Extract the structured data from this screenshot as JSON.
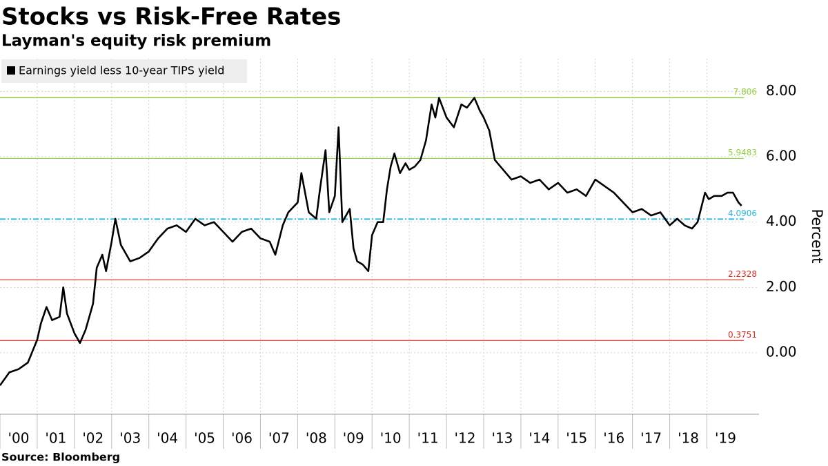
{
  "chart_data": {
    "type": "line",
    "title": "Stocks vs Risk-Free Rates",
    "subtitle": "Layman's equity risk premium",
    "source": "Source: Bloomberg",
    "y_label": "Percent",
    "xlim": [
      2000,
      2020.4
    ],
    "ylim": [
      -1.88,
      9.0
    ],
    "xticks": [
      {
        "value": 2000,
        "label": "'00"
      },
      {
        "value": 2001,
        "label": "'01"
      },
      {
        "value": 2002,
        "label": "'02"
      },
      {
        "value": 2003,
        "label": "'03"
      },
      {
        "value": 2004,
        "label": "'04"
      },
      {
        "value": 2005,
        "label": "'05"
      },
      {
        "value": 2006,
        "label": "'06"
      },
      {
        "value": 2007,
        "label": "'07"
      },
      {
        "value": 2008,
        "label": "'08"
      },
      {
        "value": 2009,
        "label": "'09"
      },
      {
        "value": 2010,
        "label": "'10"
      },
      {
        "value": 2011,
        "label": "'11"
      },
      {
        "value": 2012,
        "label": "'12"
      },
      {
        "value": 2013,
        "label": "'13"
      },
      {
        "value": 2014,
        "label": "'14"
      },
      {
        "value": 2015,
        "label": "'15"
      },
      {
        "value": 2016,
        "label": "'16"
      },
      {
        "value": 2017,
        "label": "'17"
      },
      {
        "value": 2018,
        "label": "'18"
      },
      {
        "value": 2019,
        "label": "'19"
      }
    ],
    "yticks": [
      {
        "value": 0,
        "label": "0.00"
      },
      {
        "value": 2,
        "label": "2.00"
      },
      {
        "value": 4,
        "label": "4.00"
      },
      {
        "value": 6,
        "label": "6.00"
      },
      {
        "value": 8,
        "label": "8.00"
      }
    ],
    "grid": true,
    "legend": "top-left",
    "reference_lines": [
      {
        "value": 7.806,
        "color": "#8fd13a",
        "dashed": false
      },
      {
        "value": 5.9483,
        "color": "#8fd13a",
        "dashed": false
      },
      {
        "value": 4.0906,
        "color": "#29b6e8",
        "dashed": true
      },
      {
        "value": 2.2328,
        "color": "#e0281e",
        "dashed": false
      },
      {
        "value": 0.3751,
        "color": "#e0281e",
        "dashed": false
      }
    ],
    "x": [
      2000.0,
      2000.25,
      2000.5,
      2000.75,
      2001.0,
      2001.1,
      2001.25,
      2001.4,
      2001.6,
      2001.7,
      2001.8,
      2002.0,
      2002.15,
      2002.3,
      2002.5,
      2002.6,
      2002.75,
      2002.85,
      2003.0,
      2003.1,
      2003.25,
      2003.5,
      2003.75,
      2004.0,
      2004.25,
      2004.5,
      2004.75,
      2005.0,
      2005.25,
      2005.5,
      2005.75,
      2006.0,
      2006.25,
      2006.5,
      2006.75,
      2007.0,
      2007.25,
      2007.4,
      2007.6,
      2007.75,
      2008.0,
      2008.1,
      2008.3,
      2008.5,
      2008.6,
      2008.75,
      2008.85,
      2009.0,
      2009.1,
      2009.2,
      2009.4,
      2009.5,
      2009.6,
      2009.75,
      2009.9,
      2010.0,
      2010.15,
      2010.3,
      2010.4,
      2010.5,
      2010.6,
      2010.75,
      2010.9,
      2011.0,
      2011.15,
      2011.3,
      2011.45,
      2011.6,
      2011.7,
      2011.8,
      2012.0,
      2012.2,
      2012.4,
      2012.55,
      2012.75,
      2012.9,
      2013.0,
      2013.15,
      2013.3,
      2013.45,
      2013.6,
      2013.75,
      2014.0,
      2014.25,
      2014.5,
      2014.75,
      2015.0,
      2015.25,
      2015.5,
      2015.75,
      2016.0,
      2016.25,
      2016.5,
      2016.75,
      2017.0,
      2017.25,
      2017.5,
      2017.75,
      2018.0,
      2018.2,
      2018.4,
      2018.6,
      2018.75,
      2018.95,
      2019.05,
      2019.2,
      2019.4,
      2019.55,
      2019.7,
      2019.85,
      2019.93
    ],
    "series": [
      {
        "name": "Earnings yield less 10-year TIPS yield",
        "color": "#000000",
        "values": [
          -1.0,
          -0.6,
          -0.5,
          -0.3,
          0.4,
          0.9,
          1.4,
          1.0,
          1.1,
          2.0,
          1.2,
          0.6,
          0.3,
          0.7,
          1.5,
          2.6,
          3.0,
          2.5,
          3.4,
          4.1,
          3.3,
          2.8,
          2.9,
          3.1,
          3.5,
          3.8,
          3.9,
          3.7,
          4.1,
          3.9,
          4.0,
          3.7,
          3.4,
          3.7,
          3.8,
          3.5,
          3.4,
          3.0,
          3.9,
          4.3,
          4.6,
          5.5,
          4.3,
          4.1,
          5.0,
          6.2,
          4.3,
          4.8,
          6.9,
          4.0,
          4.4,
          3.2,
          2.8,
          2.7,
          2.5,
          3.6,
          4.0,
          4.0,
          5.0,
          5.7,
          6.1,
          5.5,
          5.8,
          5.6,
          5.7,
          5.9,
          6.5,
          7.6,
          7.2,
          7.8,
          7.2,
          6.9,
          7.6,
          7.5,
          7.8,
          7.4,
          7.2,
          6.8,
          5.9,
          5.7,
          5.5,
          5.3,
          5.4,
          5.2,
          5.3,
          5.0,
          5.2,
          4.9,
          5.0,
          4.8,
          5.3,
          5.1,
          4.9,
          4.6,
          4.3,
          4.4,
          4.2,
          4.3,
          3.9,
          4.1,
          3.9,
          3.8,
          4.0,
          4.9,
          4.7,
          4.8,
          4.8,
          4.9,
          4.9,
          4.6,
          4.5
        ]
      }
    ]
  }
}
